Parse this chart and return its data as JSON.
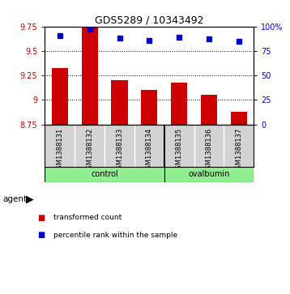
{
  "title": "GDS5289 / 10343492",
  "samples": [
    "GSM1388131",
    "GSM1388132",
    "GSM1388133",
    "GSM1388134",
    "GSM1388135",
    "GSM1388136",
    "GSM1388137"
  ],
  "bar_values": [
    9.33,
    9.75,
    9.2,
    9.1,
    9.18,
    9.05,
    8.88
  ],
  "dot_values": [
    91,
    97,
    88,
    86,
    89,
    87,
    85
  ],
  "ylim_left": [
    8.75,
    9.75
  ],
  "ylim_right": [
    0,
    100
  ],
  "yticks_left": [
    8.75,
    9.0,
    9.25,
    9.5,
    9.75
  ],
  "yticks_right": [
    0,
    25,
    50,
    75,
    100
  ],
  "ytick_labels_left": [
    "8.75",
    "9",
    "9.25",
    "9.5",
    "9.75"
  ],
  "ytick_labels_right": [
    "0",
    "25",
    "50",
    "75",
    "100%"
  ],
  "bar_color": "#cc0000",
  "dot_color": "#0000cc",
  "bar_bottom": 8.75,
  "group_separator_index": 4,
  "control_label": "control",
  "ovalbumin_label": "ovalbumin",
  "group_color": "#90ee90",
  "sample_bg_color": "#d3d3d3",
  "agent_label": "agent",
  "legend_items": [
    {
      "color": "#cc0000",
      "label": "transformed count"
    },
    {
      "color": "#0000cc",
      "label": "percentile rank within the sample"
    }
  ],
  "background_color": "#ffffff",
  "dotted_gridlines": [
    9.0,
    9.25,
    9.5
  ]
}
